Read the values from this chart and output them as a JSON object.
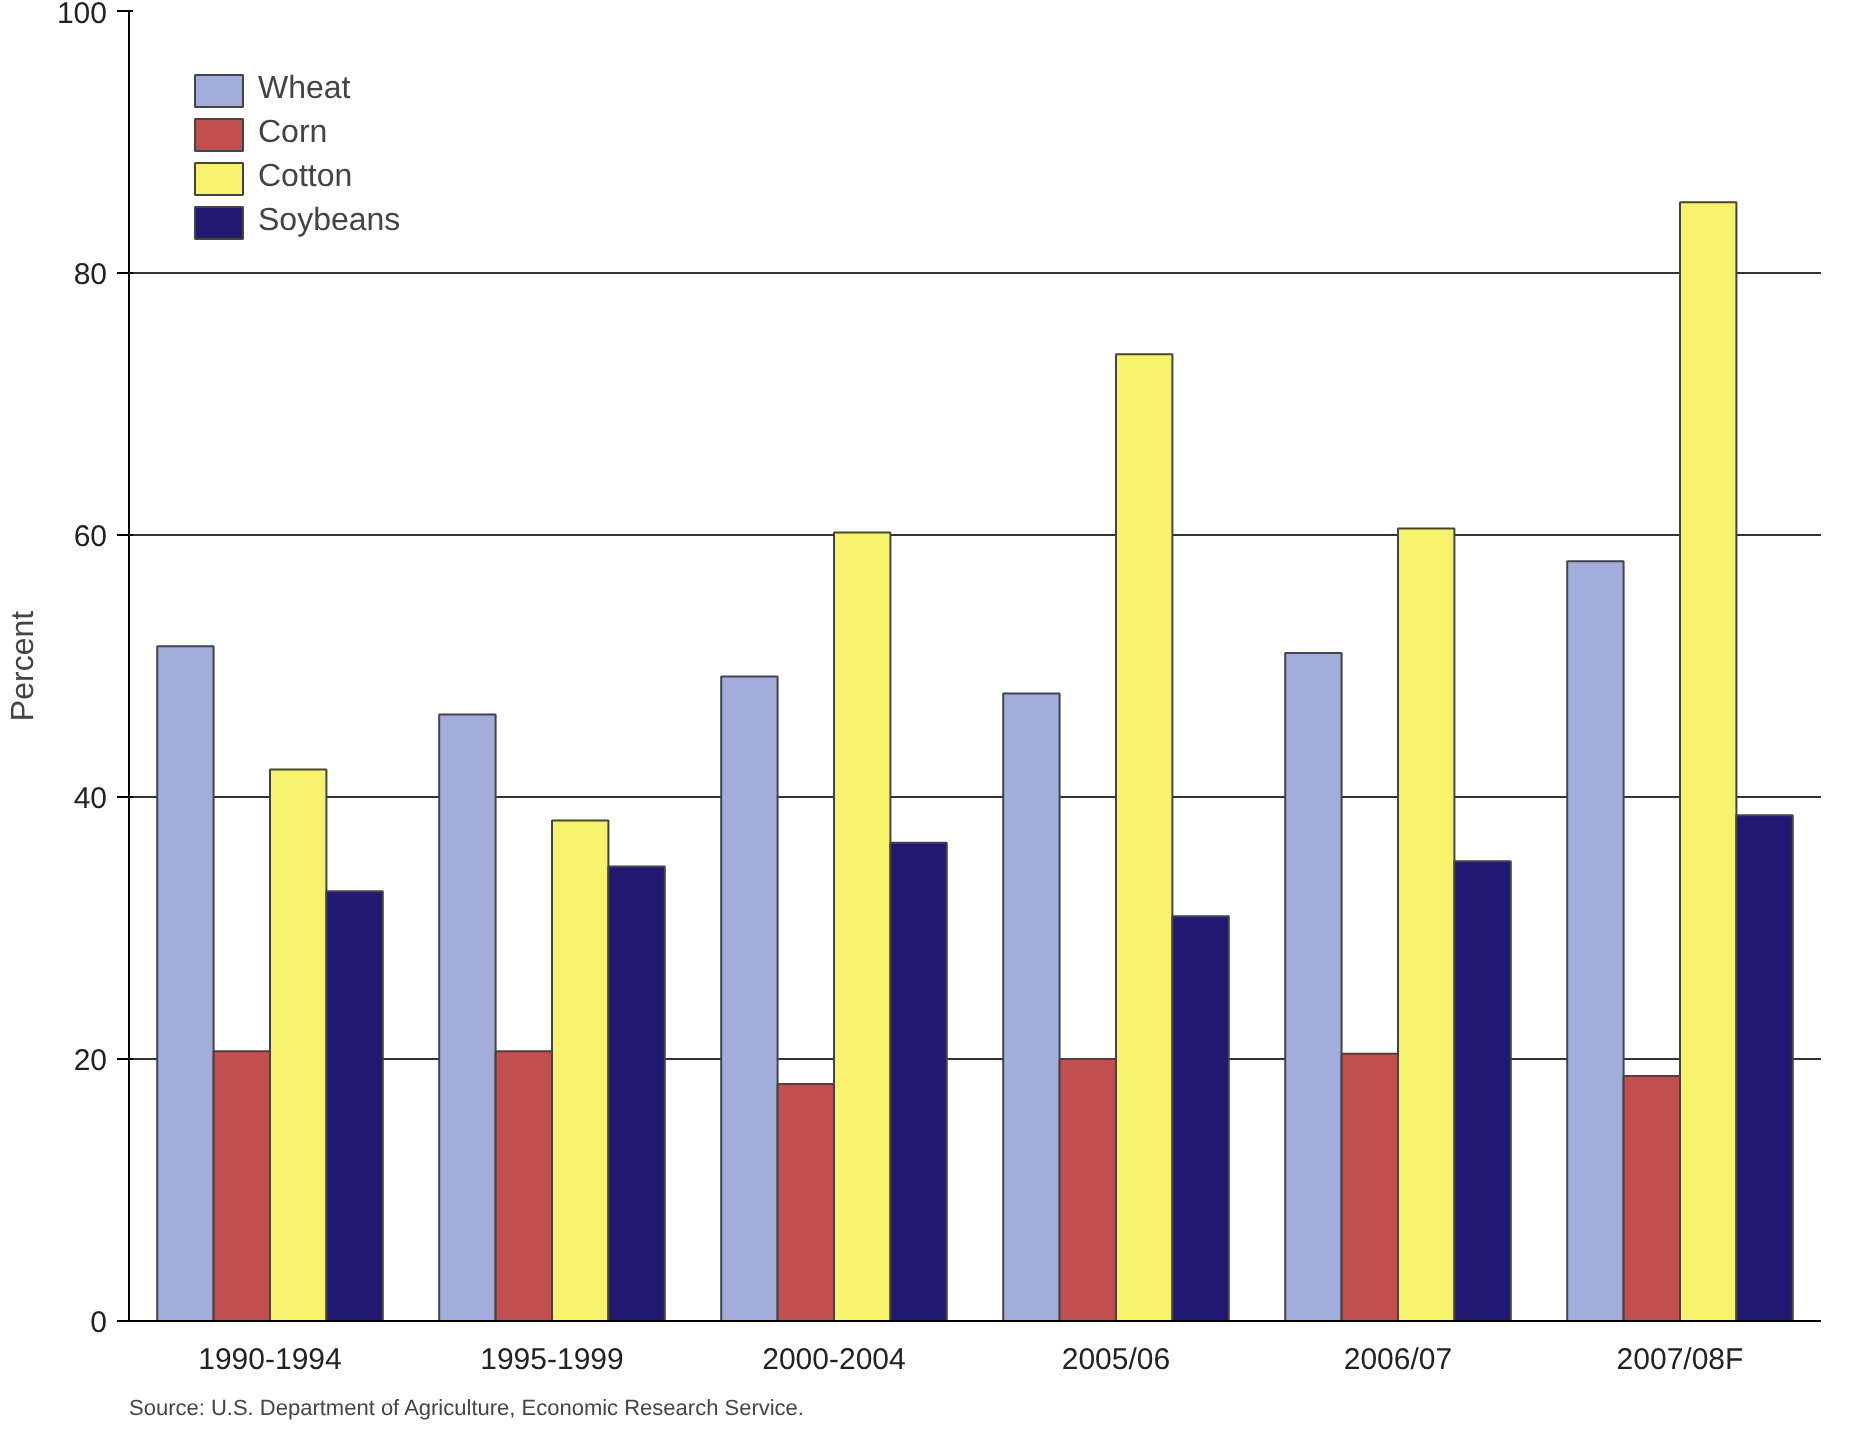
{
  "chart_data": {
    "type": "bar",
    "ylabel": "Percent",
    "categories": [
      "1990-1994",
      "1995-1999",
      "2000-2004",
      "2005/06",
      "2006/07",
      "2007/08F"
    ],
    "series": [
      {
        "name": "Wheat",
        "color": "#a3addb",
        "values": [
          51.5,
          46.3,
          49.2,
          47.9,
          51.0,
          58.0
        ]
      },
      {
        "name": "Corn",
        "color": "#c24f4f",
        "values": [
          20.6,
          20.6,
          18.1,
          20.0,
          20.4,
          18.7
        ]
      },
      {
        "name": "Cotton",
        "color": "#f7f36c",
        "values": [
          42.1,
          38.2,
          60.2,
          73.8,
          60.5,
          85.4
        ]
      },
      {
        "name": "Soybeans",
        "color": "#211872",
        "values": [
          32.8,
          34.7,
          36.5,
          30.9,
          35.1,
          38.6
        ]
      }
    ],
    "ylim": [
      0,
      100
    ],
    "yticks": [
      0,
      20,
      40,
      60,
      80,
      100
    ],
    "grid": "y",
    "legend": "top left",
    "annotations": [
      "Source: U.S. Department of Agriculture, Economic Research Service."
    ]
  }
}
